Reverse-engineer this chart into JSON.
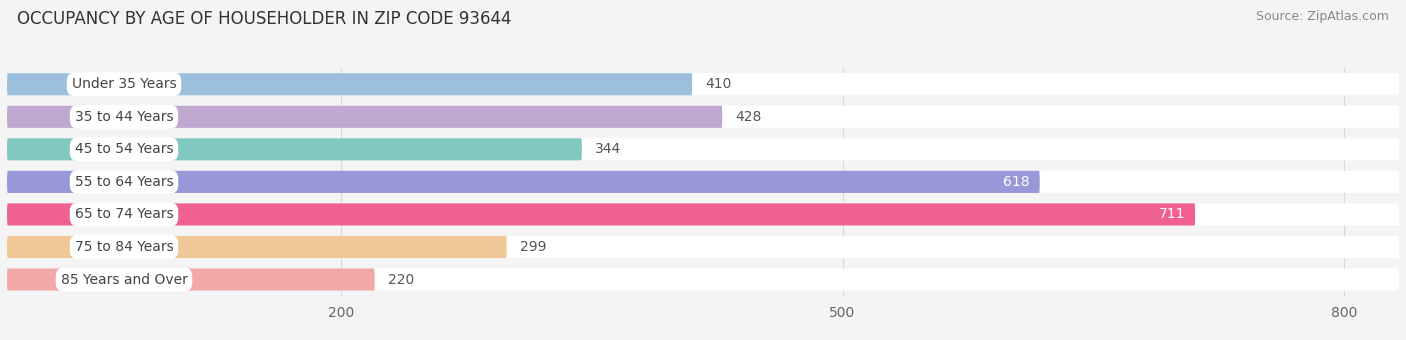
{
  "title": "OCCUPANCY BY AGE OF HOUSEHOLDER IN ZIP CODE 93644",
  "source": "Source: ZipAtlas.com",
  "categories": [
    "Under 35 Years",
    "35 to 44 Years",
    "45 to 54 Years",
    "55 to 64 Years",
    "65 to 74 Years",
    "75 to 84 Years",
    "85 Years and Over"
  ],
  "values": [
    410,
    428,
    344,
    618,
    711,
    299,
    220
  ],
  "bar_colors": [
    "#9bbfdc",
    "#c0a8d0",
    "#80c8c0",
    "#9898d8",
    "#f06090",
    "#f0c898",
    "#f0a8a8"
  ],
  "value_label_colors": [
    "#555555",
    "#555555",
    "#555555",
    "#ffffff",
    "#ffffff",
    "#555555",
    "#555555"
  ],
  "figure_bg": "#f4f4f4",
  "plot_bg": "#f4f4f4",
  "bar_bg": "#ffffff",
  "label_bg": "#ffffff",
  "grid_color": "#d8d8d8",
  "xlim_min": 0,
  "xlim_max": 833,
  "xticks": [
    200,
    500,
    800
  ],
  "title_fontsize": 12,
  "source_fontsize": 9,
  "cat_fontsize": 10,
  "val_fontsize": 10,
  "tick_fontsize": 10,
  "bar_height": 0.68
}
